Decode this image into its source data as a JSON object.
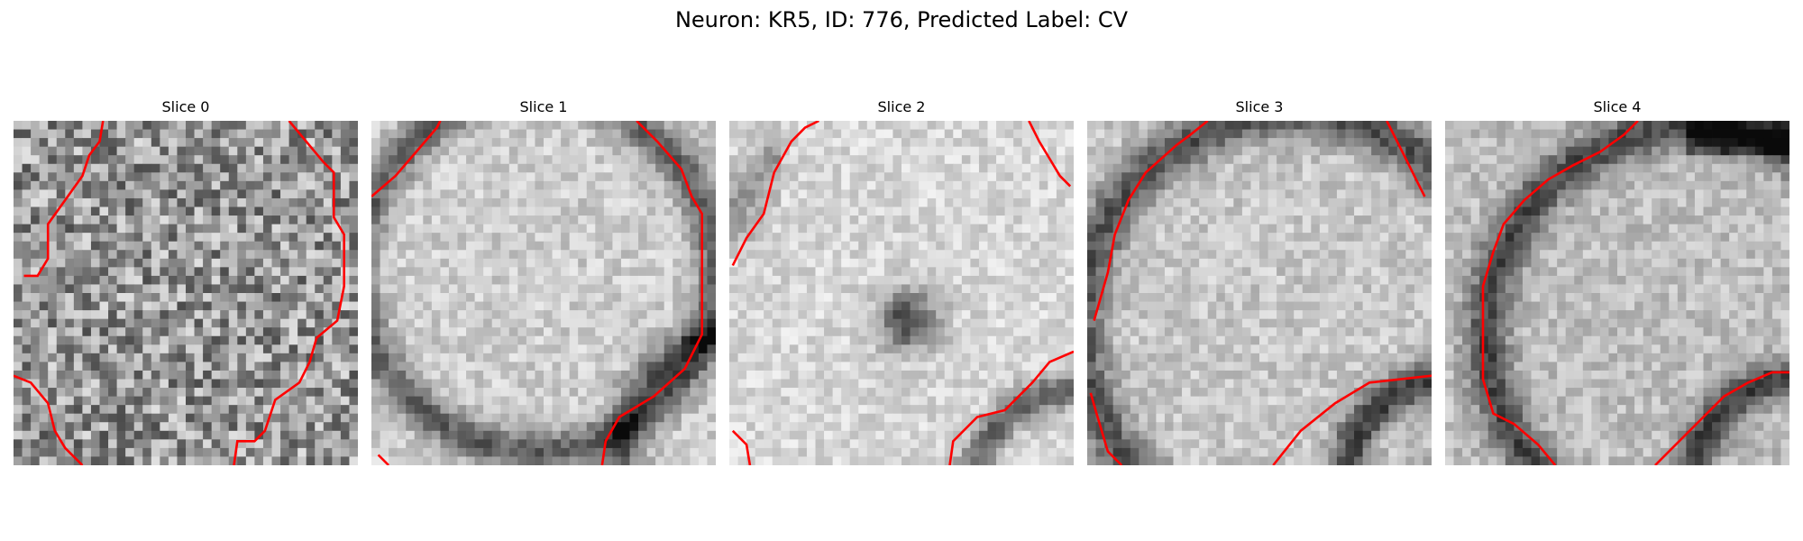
{
  "figure": {
    "title": "Neuron: KR5, ID: 776, Predicted Label: CV"
  },
  "panels": [
    {
      "title": "Slice 0",
      "image": "grayscale-em-slice-0"
    },
    {
      "title": "Slice 1",
      "image": "grayscale-em-slice-1"
    },
    {
      "title": "Slice 2",
      "image": "grayscale-em-slice-2"
    },
    {
      "title": "Slice 3",
      "image": "grayscale-em-slice-3"
    },
    {
      "title": "Slice 4",
      "image": "grayscale-em-slice-4"
    }
  ],
  "colors": {
    "contour": "#ff0000",
    "background": "#ffffff"
  }
}
